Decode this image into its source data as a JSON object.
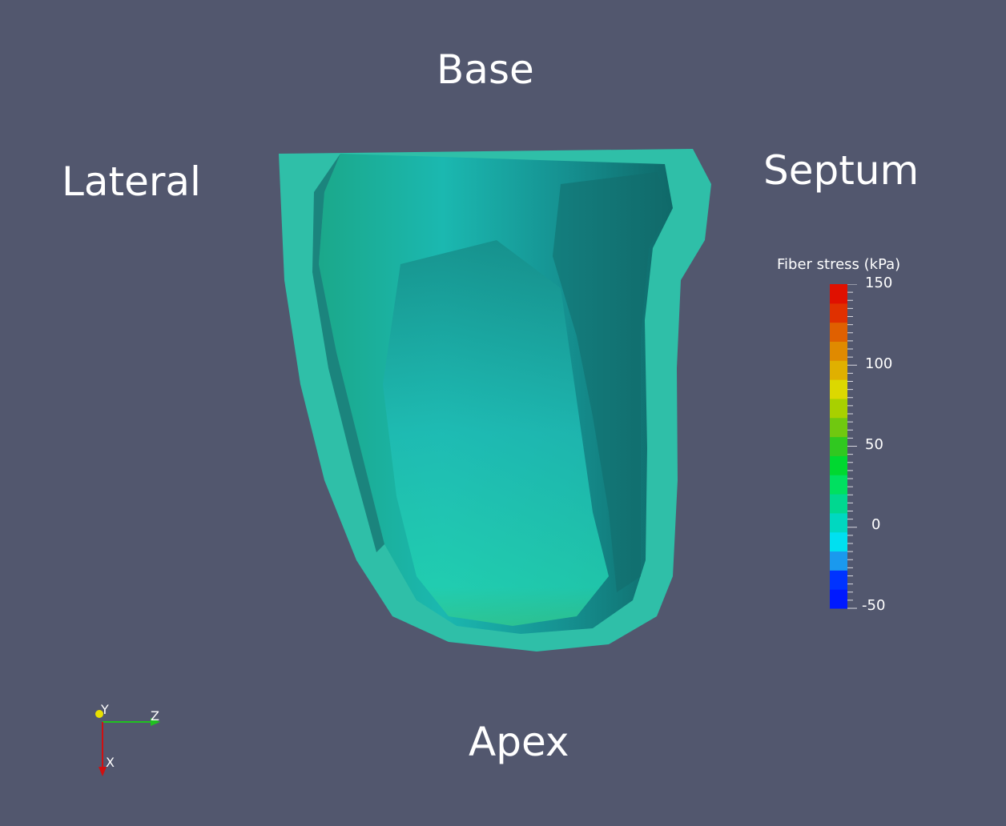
{
  "labels": {
    "base": "Base",
    "lateral": "Lateral",
    "septum": "Septum",
    "apex": "Apex"
  },
  "colorbar": {
    "title": "Fiber stress (kPa)",
    "ticks": [
      "150",
      "100",
      "50",
      "0",
      "-50"
    ],
    "range": [
      -50,
      150
    ],
    "band_colors": [
      "#0019ff",
      "#0033ff",
      "#1a99ee",
      "#00e0f0",
      "#00d8c0",
      "#00d890",
      "#00e060",
      "#00d830",
      "#30c820",
      "#70c810",
      "#a8d000",
      "#dcd800",
      "#e0b000",
      "#e08a00",
      "#e06000",
      "#e03000",
      "#e01000"
    ]
  },
  "axes": {
    "y": "Y",
    "z": "Z",
    "x": "X",
    "colors": {
      "y": "#e8e000",
      "z": "#20c020",
      "x": "#d01010"
    }
  },
  "mesh": {
    "outer_color": "#2fbfa8",
    "inner_color": "#1fa59b",
    "shadow_color": "#136c6c"
  }
}
